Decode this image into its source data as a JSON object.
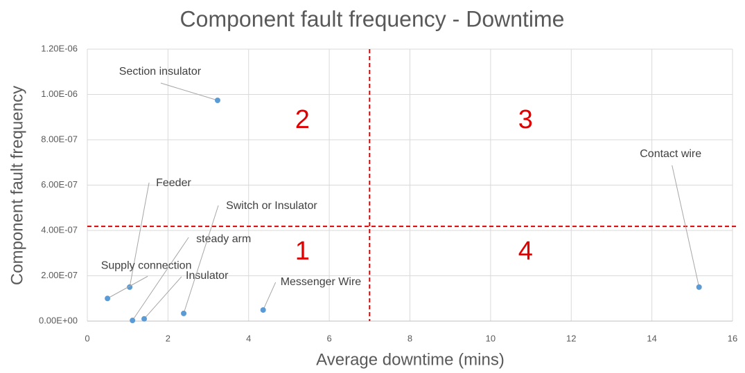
{
  "chart_data": {
    "type": "scatter",
    "title": "Component fault frequency - Downtime",
    "xlabel": "Average downtime (mins)",
    "ylabel": "Component fault frequency",
    "point_labels": [
      "Section insulator",
      "Feeder",
      "Supply connection",
      "steady arm",
      "Insulator",
      "Switch or Insulator",
      "Messenger Wire",
      "Contact wire"
    ],
    "x": [
      3.23,
      1.05,
      0.5,
      1.12,
      1.41,
      2.39,
      4.36,
      15.17
    ],
    "values": [
      9.74e-07,
      1.5e-07,
      1e-07,
      3e-09,
      1e-08,
      3.4e-08,
      4.9e-08,
      1.5e-07
    ],
    "color": "#5b9bd5",
    "xlim": [
      0,
      16
    ],
    "xticks": [
      0,
      2,
      4,
      6,
      8,
      10,
      12,
      14,
      16
    ],
    "ylim": [
      0,
      1.2e-06
    ],
    "yticks": [
      {
        "value": 0,
        "label": "0.00E+00"
      },
      {
        "value": 2e-07,
        "label": "2.00E-07"
      },
      {
        "value": 4e-07,
        "label": "4.00E-07"
      },
      {
        "value": 6e-07,
        "label": "6.00E-07"
      },
      {
        "value": 8e-07,
        "label": "8.00E-07"
      },
      {
        "value": 1e-06,
        "label": "1.00E-06"
      },
      {
        "value": 1.2e-06,
        "label": "1.20E-06"
      }
    ],
    "grid": true,
    "threshold_x": 7,
    "threshold_y": 4.18e-07,
    "threshold_color": "#e00000",
    "quadrant_labels": [
      "1",
      "2",
      "3",
      "4"
    ]
  }
}
